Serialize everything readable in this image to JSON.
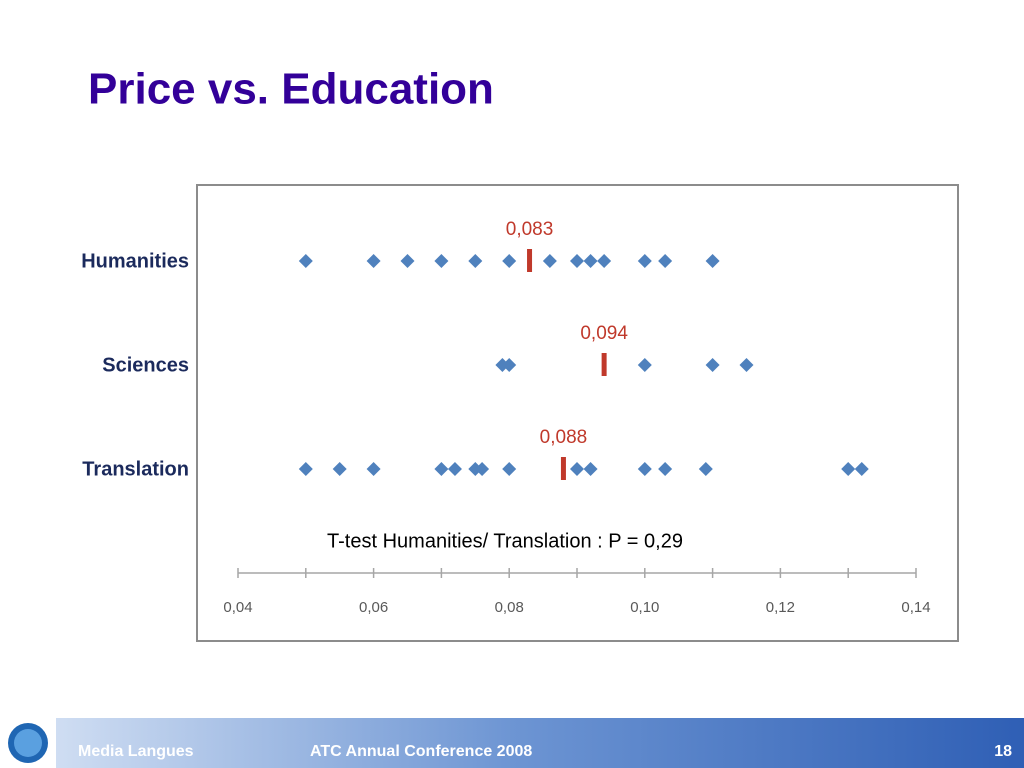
{
  "chart_data": {
    "type": "strip",
    "title": "Price vs. Education",
    "annotation": "T-test Humanities/ Translation : P = 0,29",
    "series": [
      {
        "name": "Humanities",
        "color": "#4f81bd",
        "values": [
          0.05,
          0.06,
          0.065,
          0.07,
          0.075,
          0.08,
          0.086,
          0.09,
          0.092,
          0.094,
          0.1,
          0.103,
          0.11
        ],
        "mean": 0.083,
        "mean_label": "0,083"
      },
      {
        "name": "Sciences",
        "color": "#4f81bd",
        "values": [
          0.079,
          0.08,
          0.1,
          0.11,
          0.115
        ],
        "mean": 0.094,
        "mean_label": "0,094"
      },
      {
        "name": "Translation",
        "color": "#4f81bd",
        "values": [
          0.05,
          0.055,
          0.06,
          0.07,
          0.072,
          0.075,
          0.076,
          0.08,
          0.09,
          0.092,
          0.1,
          0.103,
          0.109,
          0.13,
          0.132
        ],
        "mean": 0.088,
        "mean_label": "0,088"
      }
    ],
    "mean_color": "#c0392b",
    "xlim": [
      0.04,
      0.14
    ],
    "xticks": [
      {
        "value": 0.04,
        "label": "0,04"
      },
      {
        "value": 0.06,
        "label": "0,06"
      },
      {
        "value": 0.08,
        "label": "0,08"
      },
      {
        "value": 0.1,
        "label": "0,10"
      },
      {
        "value": 0.12,
        "label": "0,12"
      },
      {
        "value": 0.14,
        "label": "0,14"
      }
    ],
    "xminorticks": [
      0.05,
      0.07,
      0.09,
      0.11,
      0.13
    ]
  },
  "footer": {
    "left": "Media Langues",
    "center": "ATC Annual Conference 2008",
    "page": "18"
  }
}
